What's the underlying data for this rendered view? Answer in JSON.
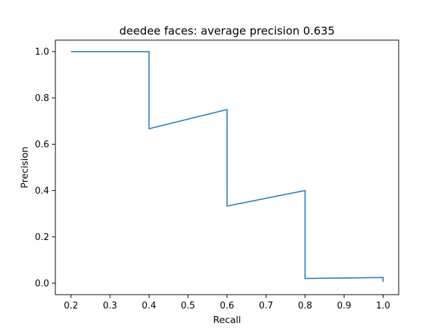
{
  "chart_data": {
    "type": "line",
    "title": "deedee faces: average precision 0.635",
    "xlabel": "Recall",
    "ylabel": "Precision",
    "xlim": [
      0.16,
      1.04
    ],
    "ylim": [
      -0.05,
      1.05
    ],
    "xticks": [
      "0.2",
      "0.3",
      "0.4",
      "0.5",
      "0.6",
      "0.7",
      "0.8",
      "0.9",
      "1.0"
    ],
    "yticks": [
      "0.0",
      "0.2",
      "0.4",
      "0.6",
      "0.8",
      "1.0"
    ],
    "grid": false,
    "series": [
      {
        "color": "#1f77b4",
        "x": [
          0.2,
          0.4,
          0.4,
          0.6,
          0.6,
          0.8,
          0.8,
          1.0,
          1.0
        ],
        "y": [
          1.0,
          1.0,
          0.667,
          0.75,
          0.333,
          0.4,
          0.02,
          0.024,
          0.005
        ]
      }
    ]
  }
}
